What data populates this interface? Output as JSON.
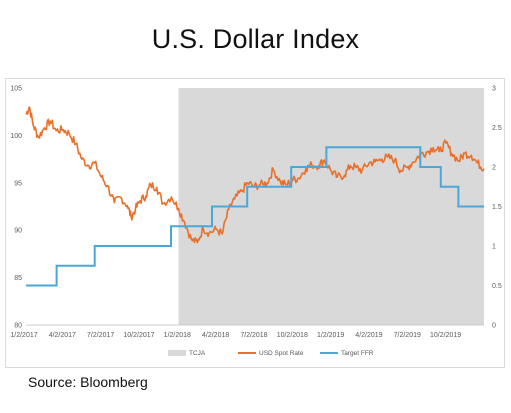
{
  "title": "U.S. Dollar Index",
  "source": "Source: Bloomberg",
  "colors": {
    "usd": "#e8702a",
    "ffr": "#4aa8d8",
    "tcja": "#d9d9d9"
  },
  "chart_data": {
    "type": "line",
    "title": "U.S. Dollar Index",
    "x_tick_labels": [
      "1/2/2017",
      "4/2/2017",
      "7/2/2017",
      "10/2/2017",
      "1/2/2018",
      "4/2/2018",
      "7/2/2018",
      "10/2/2018",
      "1/2/2019",
      "4/2/2019",
      "7/2/2019",
      "10/2/2019"
    ],
    "x_range": [
      "2017-01-02",
      "2019-12-31"
    ],
    "y_left": {
      "ylim": [
        80,
        105
      ],
      "ticks": [
        "80",
        "85",
        "90",
        "95",
        "100",
        "105"
      ]
    },
    "y_right": {
      "ylim": [
        0,
        3
      ],
      "ticks": [
        "0",
        "0.5",
        "1",
        "1.5",
        "2",
        "2.5",
        "3"
      ]
    },
    "grid": false,
    "legend_position": "bottom",
    "legend": [
      "TCJA",
      "USD Spot Rate",
      "Target FFR"
    ],
    "shaded_region": {
      "name": "TCJA",
      "x_start": "2018-01-01",
      "x_end": "2019-12-31"
    },
    "series": [
      {
        "name": "USD Spot Rate",
        "axis": "left",
        "points": [
          [
            "2017-01-02",
            102.2
          ],
          [
            "2017-01-10",
            103.0
          ],
          [
            "2017-01-20",
            101.0
          ],
          [
            "2017-02-01",
            99.8
          ],
          [
            "2017-02-15",
            100.8
          ],
          [
            "2017-03-01",
            101.5
          ],
          [
            "2017-03-15",
            100.5
          ],
          [
            "2017-04-01",
            100.6
          ],
          [
            "2017-04-15",
            100.2
          ],
          [
            "2017-05-01",
            99.1
          ],
          [
            "2017-05-15",
            97.5
          ],
          [
            "2017-06-01",
            96.8
          ],
          [
            "2017-06-15",
            97.1
          ],
          [
            "2017-07-01",
            95.6
          ],
          [
            "2017-07-15",
            94.7
          ],
          [
            "2017-08-01",
            92.9
          ],
          [
            "2017-08-15",
            93.5
          ],
          [
            "2017-09-01",
            92.6
          ],
          [
            "2017-09-10",
            91.4
          ],
          [
            "2017-09-20",
            92.2
          ],
          [
            "2017-10-01",
            93.1
          ],
          [
            "2017-10-15",
            93.6
          ],
          [
            "2017-10-26",
            94.8
          ],
          [
            "2017-11-10",
            94.5
          ],
          [
            "2017-11-25",
            92.8
          ],
          [
            "2017-12-15",
            93.5
          ],
          [
            "2018-01-01",
            92.3
          ],
          [
            "2018-01-15",
            90.9
          ],
          [
            "2018-02-01",
            89.0
          ],
          [
            "2018-02-15",
            88.7
          ],
          [
            "2018-03-01",
            90.2
          ],
          [
            "2018-03-15",
            89.7
          ],
          [
            "2018-04-01",
            90.1
          ],
          [
            "2018-04-15",
            89.6
          ],
          [
            "2018-05-01",
            92.2
          ],
          [
            "2018-05-15",
            93.3
          ],
          [
            "2018-06-01",
            94.1
          ],
          [
            "2018-06-15",
            95.0
          ],
          [
            "2018-07-01",
            94.6
          ],
          [
            "2018-07-15",
            94.8
          ],
          [
            "2018-08-01",
            95.0
          ],
          [
            "2018-08-15",
            96.4
          ],
          [
            "2018-09-01",
            95.1
          ],
          [
            "2018-09-15",
            94.8
          ],
          [
            "2018-10-01",
            95.3
          ],
          [
            "2018-10-15",
            95.5
          ],
          [
            "2018-11-01",
            96.5
          ],
          [
            "2018-11-15",
            96.9
          ],
          [
            "2018-12-01",
            96.8
          ],
          [
            "2018-12-15",
            97.4
          ],
          [
            "2019-01-01",
            96.2
          ],
          [
            "2019-01-15",
            95.6
          ],
          [
            "2019-02-01",
            95.8
          ],
          [
            "2019-02-15",
            96.8
          ],
          [
            "2019-03-01",
            96.6
          ],
          [
            "2019-03-15",
            96.3
          ],
          [
            "2019-04-01",
            97.1
          ],
          [
            "2019-04-15",
            97.2
          ],
          [
            "2019-05-01",
            97.5
          ],
          [
            "2019-05-15",
            97.7
          ],
          [
            "2019-06-01",
            97.4
          ],
          [
            "2019-06-15",
            96.3
          ],
          [
            "2019-07-01",
            96.6
          ],
          [
            "2019-07-15",
            97.2
          ],
          [
            "2019-08-01",
            98.0
          ],
          [
            "2019-08-15",
            98.2
          ],
          [
            "2019-09-01",
            98.7
          ],
          [
            "2019-09-15",
            98.3
          ],
          [
            "2019-10-01",
            99.2
          ],
          [
            "2019-10-15",
            98.1
          ],
          [
            "2019-11-01",
            97.3
          ],
          [
            "2019-11-15",
            98.1
          ],
          [
            "2019-12-01",
            97.9
          ],
          [
            "2019-12-15",
            97.1
          ],
          [
            "2019-12-31",
            96.5
          ]
        ]
      },
      {
        "name": "Target FFR",
        "axis": "right",
        "steps": [
          [
            "2017-01-02",
            0.5
          ],
          [
            "2017-03-16",
            0.75
          ],
          [
            "2017-06-15",
            1.0
          ],
          [
            "2017-12-14",
            1.25
          ],
          [
            "2018-03-22",
            1.5
          ],
          [
            "2018-06-14",
            1.75
          ],
          [
            "2018-09-27",
            2.0
          ],
          [
            "2018-12-20",
            2.25
          ],
          [
            "2019-08-01",
            2.0
          ],
          [
            "2019-09-19",
            1.75
          ],
          [
            "2019-10-31",
            1.5
          ],
          [
            "2019-12-31",
            1.5
          ]
        ]
      }
    ]
  }
}
